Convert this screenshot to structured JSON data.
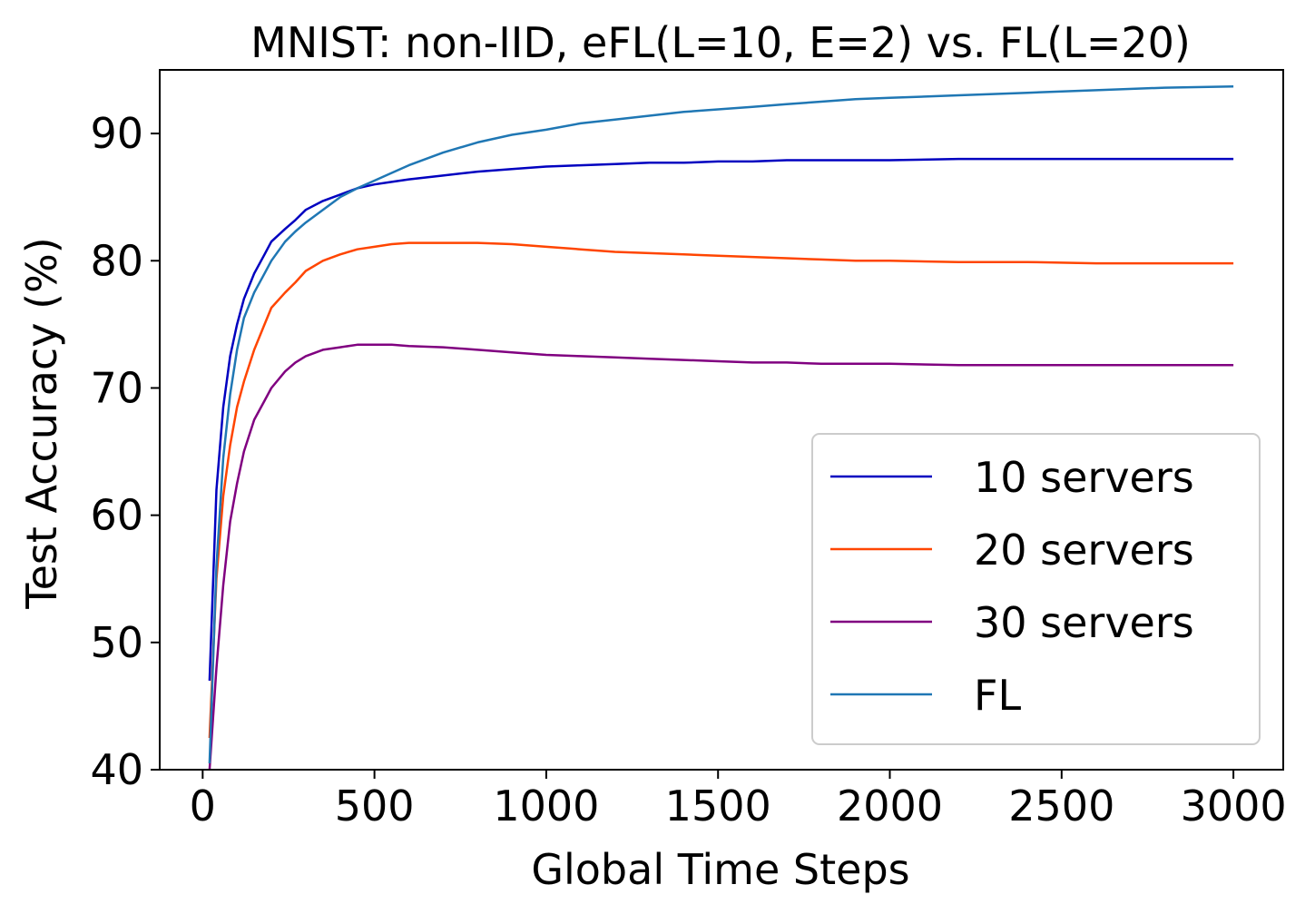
{
  "chart_data": {
    "type": "line",
    "title": "MNIST: non-IID, eFL(L=10, E=2) vs. FL(L=20)",
    "xlabel": "Global Time Steps",
    "ylabel": "Test Accuracy (%)",
    "xlim": [
      -125,
      3145
    ],
    "ylim": [
      40,
      95
    ],
    "xticks": [
      0,
      500,
      1000,
      1500,
      2000,
      2500,
      3000
    ],
    "yticks": [
      40,
      50,
      60,
      70,
      80,
      90
    ],
    "grid": false,
    "legend_position": "lower-right",
    "series": [
      {
        "name": "10 servers",
        "color": "#0000c0",
        "x": [
          20,
          40,
          60,
          80,
          100,
          120,
          150,
          180,
          200,
          240,
          270,
          300,
          350,
          400,
          450,
          500,
          550,
          600,
          700,
          800,
          900,
          1000,
          1100,
          1200,
          1300,
          1400,
          1500,
          1600,
          1700,
          1800,
          1900,
          2000,
          2200,
          2400,
          2600,
          2800,
          3000
        ],
        "values": [
          47.0,
          62.0,
          68.5,
          72.5,
          75.0,
          77.0,
          79.0,
          80.5,
          81.5,
          82.5,
          83.2,
          84.0,
          84.7,
          85.2,
          85.7,
          86.0,
          86.2,
          86.4,
          86.7,
          87.0,
          87.2,
          87.4,
          87.5,
          87.6,
          87.7,
          87.7,
          87.8,
          87.8,
          87.9,
          87.9,
          87.9,
          87.9,
          88.0,
          88.0,
          88.0,
          88.0,
          88.0
        ]
      },
      {
        "name": "20 servers",
        "color": "#ff4500",
        "x": [
          20,
          40,
          60,
          80,
          100,
          120,
          150,
          180,
          200,
          240,
          270,
          300,
          350,
          400,
          450,
          500,
          550,
          600,
          700,
          800,
          900,
          1000,
          1100,
          1200,
          1300,
          1400,
          1500,
          1600,
          1700,
          1800,
          1900,
          2000,
          2200,
          2400,
          2600,
          2800,
          3000
        ],
        "values": [
          42.5,
          55.0,
          61.5,
          65.5,
          68.5,
          70.5,
          73.0,
          75.0,
          76.3,
          77.5,
          78.3,
          79.2,
          80.0,
          80.5,
          80.9,
          81.1,
          81.3,
          81.4,
          81.4,
          81.4,
          81.3,
          81.1,
          80.9,
          80.7,
          80.6,
          80.5,
          80.4,
          80.3,
          80.2,
          80.1,
          80.0,
          80.0,
          79.9,
          79.9,
          79.8,
          79.8,
          79.8
        ]
      },
      {
        "name": "30 servers",
        "color": "#800080",
        "x": [
          20,
          40,
          60,
          80,
          100,
          120,
          150,
          180,
          200,
          240,
          270,
          300,
          350,
          400,
          450,
          500,
          550,
          600,
          700,
          800,
          900,
          1000,
          1100,
          1200,
          1300,
          1400,
          1500,
          1600,
          1700,
          1800,
          1900,
          2000,
          2200,
          2400,
          2600,
          2800,
          3000
        ],
        "values": [
          39.5,
          48.0,
          54.5,
          59.5,
          62.5,
          65.0,
          67.5,
          69.0,
          70.0,
          71.3,
          72.0,
          72.5,
          73.0,
          73.2,
          73.4,
          73.4,
          73.4,
          73.3,
          73.2,
          73.0,
          72.8,
          72.6,
          72.5,
          72.4,
          72.3,
          72.2,
          72.1,
          72.0,
          72.0,
          71.9,
          71.9,
          71.9,
          71.8,
          71.8,
          71.8,
          71.8,
          71.8
        ]
      },
      {
        "name": "FL",
        "color": "#1f77b4",
        "x": [
          20,
          40,
          60,
          80,
          100,
          120,
          150,
          180,
          200,
          240,
          270,
          300,
          350,
          400,
          450,
          500,
          550,
          600,
          700,
          800,
          900,
          1000,
          1100,
          1200,
          1300,
          1400,
          1500,
          1600,
          1700,
          1800,
          1900,
          2000,
          2200,
          2400,
          2600,
          2800,
          3000
        ],
        "values": [
          40.5,
          56.0,
          64.5,
          69.5,
          73.0,
          75.5,
          77.5,
          79.0,
          80.0,
          81.5,
          82.3,
          83.0,
          84.0,
          85.0,
          85.7,
          86.3,
          86.9,
          87.5,
          88.5,
          89.3,
          89.9,
          90.3,
          90.8,
          91.1,
          91.4,
          91.7,
          91.9,
          92.1,
          92.3,
          92.5,
          92.7,
          92.8,
          93.0,
          93.2,
          93.4,
          93.6,
          93.7
        ]
      }
    ]
  }
}
